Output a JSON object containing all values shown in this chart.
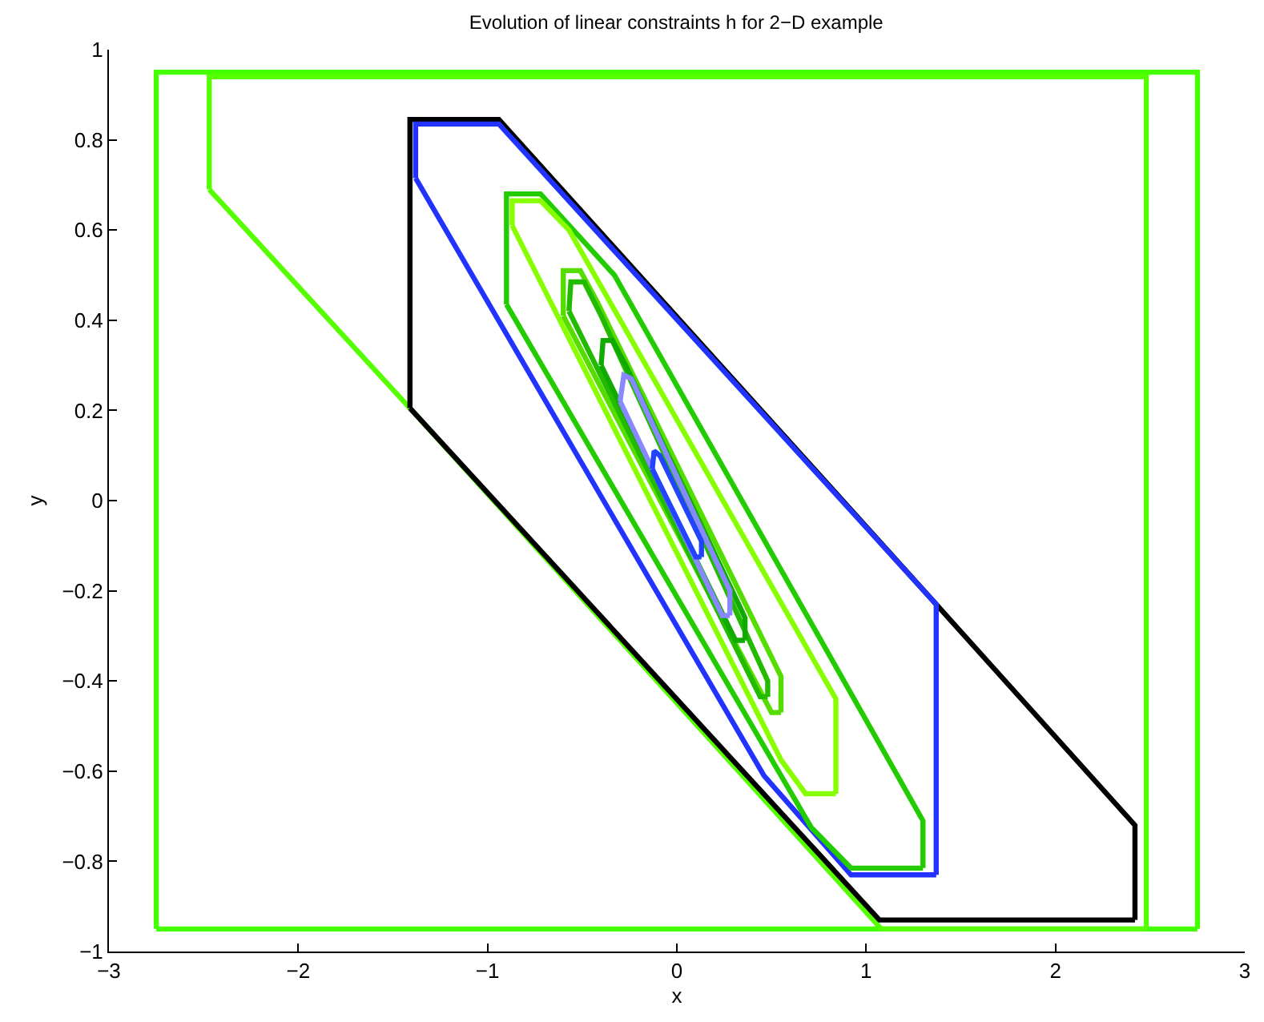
{
  "chart_data": {
    "type": "line",
    "title": "Evolution of linear constraints h for 2−D example",
    "xlabel": "x",
    "ylabel": "y",
    "xlim": [
      -3,
      3
    ],
    "xticks": [
      {
        "value": -3,
        "label": "−3"
      },
      {
        "value": -2,
        "label": "−2"
      },
      {
        "value": -1,
        "label": "−1"
      },
      0,
      1,
      2,
      3
    ],
    "ylim": [
      -1,
      1
    ],
    "yticks": [
      {
        "value": -1,
        "label": "−1"
      },
      {
        "value": -0.8,
        "label": "−0.8"
      },
      {
        "value": -0.6,
        "label": "−0.6"
      },
      {
        "value": -0.4,
        "label": "−0.4"
      },
      {
        "value": -0.2,
        "label": "−0.2"
      },
      0,
      0.2,
      0.4,
      0.6,
      0.8,
      1
    ],
    "marker": "none",
    "line_style": "solid",
    "series": [
      {
        "color": "#44ff00",
        "x": [
          -2.75,
          -2.75,
          2.75,
          2.75
        ],
        "values": [
          -0.95,
          0.95,
          0.95,
          -0.95
        ]
      },
      {
        "color": "#44ff00",
        "x": [
          -2.75,
          2.75
        ],
        "values": [
          -0.95,
          -0.95
        ]
      },
      {
        "color": "#55ff00",
        "x": [
          -2.47,
          -2.47,
          2.48,
          2.48
        ],
        "values": [
          0.69,
          0.94,
          0.94,
          -0.95
        ]
      },
      {
        "color": "#55ff00",
        "x": [
          -2.47,
          -1.41,
          1.08,
          2.48
        ],
        "values": [
          0.69,
          0.205,
          -0.95,
          -0.95
        ]
      },
      {
        "color": "#000000",
        "x": [
          -1.41,
          -1.41,
          -0.94,
          1.37,
          2.42,
          2.42
        ],
        "values": [
          0.205,
          0.845,
          0.845,
          -0.23,
          -0.72,
          -0.93
        ]
      },
      {
        "color": "#000000",
        "x": [
          -1.41,
          1.07,
          2.42
        ],
        "values": [
          0.205,
          -0.93,
          -0.93
        ]
      },
      {
        "color": "#2233ff",
        "x": [
          -1.38,
          -1.38,
          -0.94,
          1.37,
          1.37
        ],
        "values": [
          0.715,
          0.835,
          0.835,
          -0.23,
          -0.83
        ]
      },
      {
        "color": "#2233ff",
        "x": [
          -1.38,
          0.46,
          0.92,
          1.37
        ],
        "values": [
          0.715,
          -0.61,
          -0.83,
          -0.83
        ]
      },
      {
        "color": "#22cc00",
        "x": [
          -0.9,
          -0.9,
          -0.72,
          -0.33,
          1.3,
          1.3
        ],
        "values": [
          0.435,
          0.68,
          0.68,
          0.5,
          -0.71,
          -0.815
        ]
      },
      {
        "color": "#22cc00",
        "x": [
          -0.9,
          0.71,
          0.92,
          1.3
        ],
        "values": [
          0.435,
          -0.725,
          -0.815,
          -0.815
        ]
      },
      {
        "color": "#88ff00",
        "x": [
          -0.87,
          -0.87,
          -0.72,
          -0.57,
          0.84,
          0.84
        ],
        "values": [
          0.61,
          0.665,
          0.665,
          0.6,
          -0.44,
          -0.65
        ]
      },
      {
        "color": "#88ff00",
        "x": [
          -0.87,
          0.55,
          0.68,
          0.84
        ],
        "values": [
          0.61,
          -0.575,
          -0.65,
          -0.65
        ]
      },
      {
        "color": "#55dd00",
        "x": [
          -0.6,
          -0.6,
          -0.51,
          -0.42,
          0.55,
          0.55
        ],
        "values": [
          0.41,
          0.51,
          0.51,
          0.44,
          -0.39,
          -0.47
        ]
      },
      {
        "color": "#55dd00",
        "x": [
          -0.6,
          0.5,
          0.55
        ],
        "values": [
          0.41,
          -0.47,
          -0.47
        ]
      },
      {
        "color": "#22bb00",
        "x": [
          -0.57,
          -0.56,
          -0.49,
          -0.4,
          0.48,
          0.48
        ],
        "values": [
          0.42,
          0.485,
          0.485,
          0.41,
          -0.4,
          -0.435
        ]
      },
      {
        "color": "#22bb00",
        "x": [
          -0.57,
          0.44,
          0.48
        ],
        "values": [
          0.42,
          -0.435,
          -0.435
        ]
      },
      {
        "color": "#11aa00",
        "x": [
          -0.4,
          -0.39,
          -0.34,
          -0.27,
          0.36,
          0.36
        ],
        "values": [
          0.3,
          0.355,
          0.355,
          0.3,
          -0.26,
          -0.31
        ]
      },
      {
        "color": "#11aa00",
        "x": [
          -0.4,
          0.31,
          0.36
        ],
        "values": [
          0.3,
          -0.31,
          -0.31
        ]
      },
      {
        "color": "#8888ff",
        "x": [
          -0.3,
          -0.28,
          -0.24,
          0.28,
          0.28
        ],
        "values": [
          0.22,
          0.278,
          0.27,
          -0.2,
          -0.255
        ]
      },
      {
        "color": "#8888ff",
        "x": [
          -0.3,
          0.24,
          0.28
        ],
        "values": [
          0.22,
          -0.255,
          -0.255
        ]
      },
      {
        "color": "#2244ff",
        "x": [
          -0.13,
          -0.12,
          -0.09,
          0.13,
          0.13
        ],
        "values": [
          0.07,
          0.11,
          0.1,
          -0.09,
          -0.125
        ]
      },
      {
        "color": "#2244ff",
        "x": [
          -0.13,
          0.1,
          0.13
        ],
        "values": [
          0.07,
          -0.125,
          -0.125
        ]
      }
    ]
  }
}
